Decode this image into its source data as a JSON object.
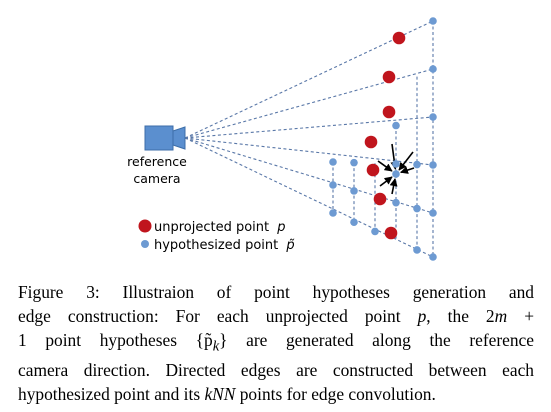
{
  "diagram": {
    "camera_label_line1": "reference",
    "camera_label_line2": "camera",
    "legend": {
      "unprojected_label": "unprojected point",
      "unprojected_symbol": "p",
      "hypothesized_label": "hypothesized point",
      "hypothesized_symbol": "p̃",
      "unprojected_color": "#c0151d",
      "hypothesized_color": "#6d9ad2"
    },
    "camera_color": "#5b8fcf",
    "line_color": "#5a78a8"
  },
  "caption": {
    "figure_label": "Figure 3:",
    "line1_rest": "Illustraion of point hypotheses generation and",
    "line2_a": "edge construction:  For each unprojected point ",
    "line2_p": "p",
    "line2_b": ", the 2",
    "line2_m": "m",
    "line2_c": " +",
    "line3_a": "1 point hypotheses {",
    "line3_p": "p̃",
    "line3_k": "k",
    "line3_b": "} are generated along the reference",
    "line4": "camera direction.  Directed edges are constructed between each",
    "line5_a": "hypothesized point and its ",
    "line5_knn": "kNN",
    "line5_b": " points for edge convolution."
  }
}
